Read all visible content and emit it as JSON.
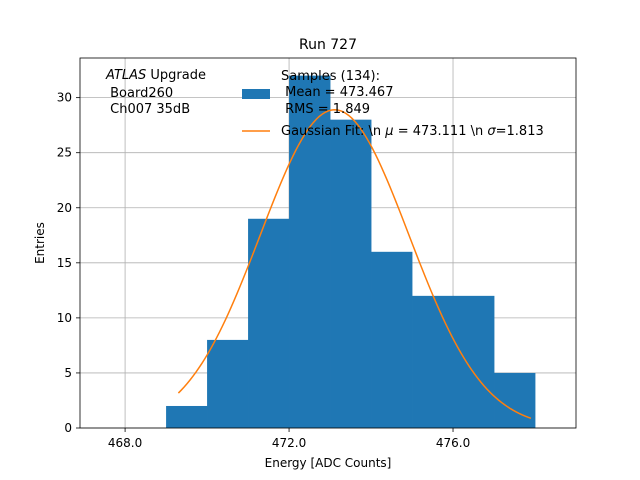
{
  "chart_data": {
    "type": "bar",
    "title": "Run 727",
    "xlabel": "Energy [ADC Counts]",
    "ylabel": "Entries",
    "xlim": [
      466.9,
      479.0
    ],
    "ylim": [
      0,
      33.6
    ],
    "xticks": [
      468.0,
      472.0,
      476.0
    ],
    "xtick_labels": [
      "468.0",
      "472.0",
      "476.0"
    ],
    "yticks": [
      0,
      5,
      10,
      15,
      20,
      25,
      30
    ],
    "grid": true,
    "bar_color": "#1f77b4",
    "fit_color": "#ff7f0e",
    "bins": [
      {
        "x0": 469,
        "x1": 470,
        "value": 2
      },
      {
        "x0": 470,
        "x1": 471,
        "value": 8
      },
      {
        "x0": 471,
        "x1": 472,
        "value": 19
      },
      {
        "x0": 472,
        "x1": 473,
        "value": 32
      },
      {
        "x0": 473,
        "x1": 474,
        "value": 28
      },
      {
        "x0": 474,
        "x1": 475,
        "value": 16
      },
      {
        "x0": 475,
        "x1": 476,
        "value": 12
      },
      {
        "x0": 476,
        "x1": 477,
        "value": 12
      },
      {
        "x0": 477,
        "x1": 478,
        "value": 5
      }
    ],
    "fit": {
      "type": "gaussian",
      "mu": 473.111,
      "sigma": 1.813,
      "amplitude": 28.9,
      "x_range": [
        469.3,
        477.9
      ]
    },
    "annotation": {
      "atlas": "ATLAS",
      "upgrade": " Upgrade",
      "line2": " Board260",
      "line3": " Ch007 35dB"
    },
    "legend": {
      "position": "top-right",
      "samples_line1": "Samples (134):",
      "samples_line2": " Mean = 473.467",
      "samples_line3": " RMS = 1.849",
      "fit_prefix": "Gaussian Fit: \\n ",
      "fit_mu_symbol": "μ",
      "fit_mid": " = 473.111 \\n ",
      "fit_sigma_symbol": "σ",
      "fit_suffix": "=1.813"
    }
  }
}
